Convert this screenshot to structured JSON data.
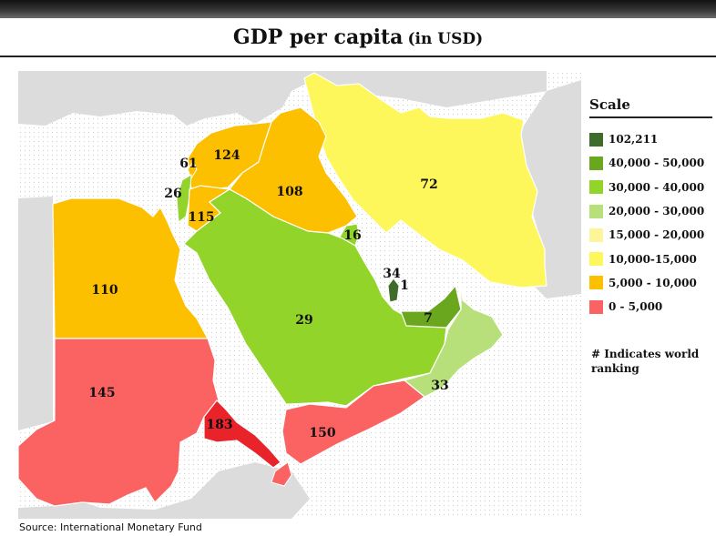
{
  "title": "GDP per capita",
  "title_suffix": "(in USD)",
  "source": "Source: International Monetary Fund",
  "legend": {
    "title": "Scale",
    "items": [
      {
        "label": "102,211",
        "color": "#3f6b2c"
      },
      {
        "label": "40,000 - 50,000",
        "color": "#6aa71f"
      },
      {
        "label": "30,000 - 40,000",
        "color": "#93d42a"
      },
      {
        "label": "20,000 - 30,000",
        "color": "#b8e07a"
      },
      {
        "label": "15,000 - 20,000",
        "color": "#fdf59a"
      },
      {
        "label": "10,000-15,000",
        "color": "#fdf75c"
      },
      {
        "label": "5,000 - 10,000",
        "color": "#fdc000"
      },
      {
        "label": "0 - 5,000",
        "color": "#fb6262"
      }
    ]
  },
  "note": "# Indicates world ranking",
  "regions": [
    {
      "rank": "124",
      "color": "#fdc000",
      "icon": "region-shape"
    },
    {
      "rank": "108",
      "color": "#fdc000",
      "icon": "region-shape"
    },
    {
      "rank": "72",
      "color": "#fdf75c",
      "icon": "region-shape"
    },
    {
      "rank": "61",
      "color": "#fdc000",
      "icon": "region-shape"
    },
    {
      "rank": "26",
      "color": "#93d42a",
      "icon": "region-shape"
    },
    {
      "rank": "115",
      "color": "#fdc000",
      "icon": "region-shape"
    },
    {
      "rank": "16",
      "color": "#93d42a",
      "icon": "region-shape"
    },
    {
      "rank": "110",
      "color": "#fdc000",
      "icon": "region-shape"
    },
    {
      "rank": "34",
      "color": "#93d42a",
      "icon": "region-shape"
    },
    {
      "rank": "1",
      "color": "#3f6b2c",
      "icon": "region-shape"
    },
    {
      "rank": "7",
      "color": "#6aa71f",
      "icon": "region-shape"
    },
    {
      "rank": "29",
      "color": "#93d42a",
      "icon": "region-shape"
    },
    {
      "rank": "33",
      "color": "#b8e07a",
      "icon": "region-shape"
    },
    {
      "rank": "145",
      "color": "#fb6262",
      "icon": "region-shape"
    },
    {
      "rank": "183",
      "color": "#e8232a",
      "icon": "region-shape"
    },
    {
      "rank": "150",
      "color": "#fb6262",
      "icon": "region-shape"
    }
  ]
}
